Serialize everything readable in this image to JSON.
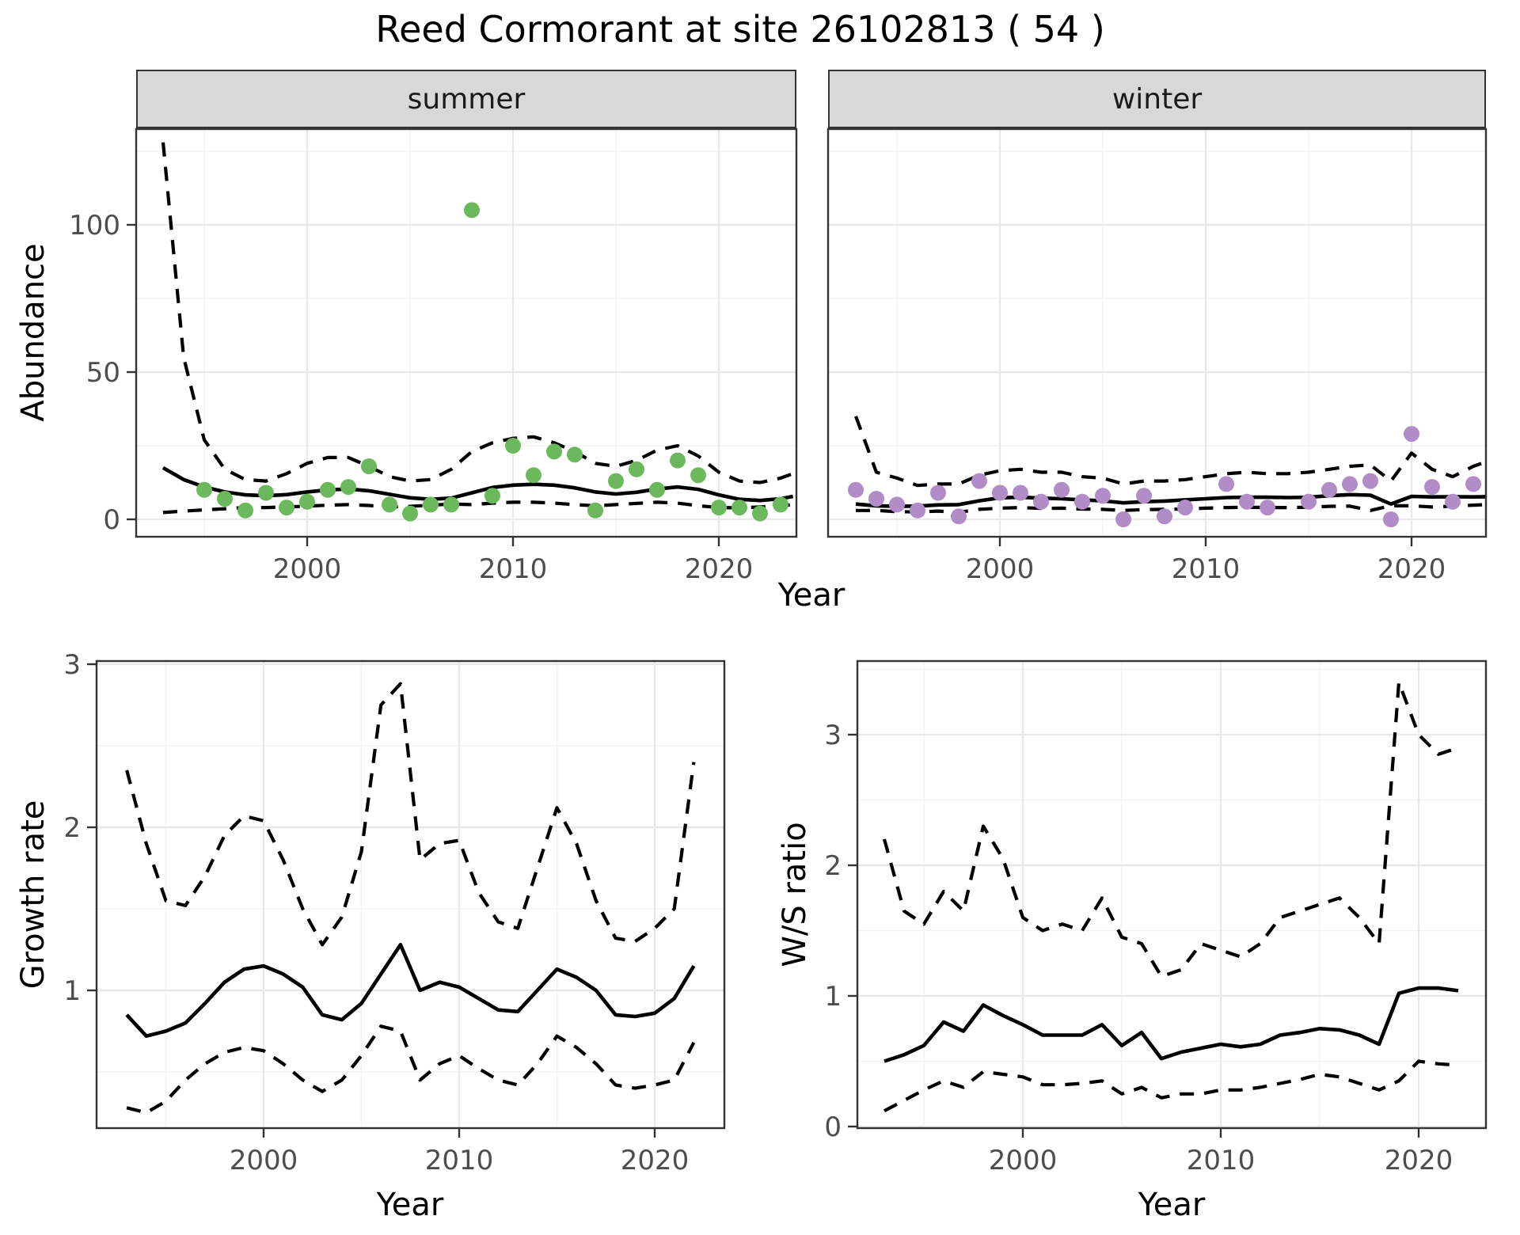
{
  "title": "Reed Cormorant at site 26102813 ( 54 )",
  "top_row": {
    "facets": [
      "summer",
      "winter"
    ],
    "ylabel": "Abundance",
    "xlabel": "Year"
  },
  "bottom_left": {
    "ylabel": "Growth rate",
    "xlabel": "Year"
  },
  "bottom_right": {
    "ylabel": "W/S ratio",
    "xlabel": "Year"
  },
  "colors": {
    "summer_point": "#6cb85c",
    "winter_point": "#b18cc6",
    "line": "#000000",
    "grid_major": "#e8e8e8",
    "grid_minor": "#f3f3f3",
    "strip_bg": "#d8d8d8",
    "panel_border": "#333333",
    "axis_text": "#4d4d4d"
  },
  "chart_data": [
    {
      "id": "abundance-summer",
      "type": "scatter",
      "facet_label": "summer",
      "xlabel": "Year",
      "ylabel": "Abundance",
      "xlim": [
        1991.7,
        2023.8
      ],
      "ylim": [
        -6,
        132
      ],
      "x_ticks": [
        2000,
        2010,
        2020
      ],
      "x_tick_labels": [
        "2000",
        "2010",
        "2020"
      ],
      "x_minor": [
        1995,
        2005,
        2015
      ],
      "y_ticks": [
        0,
        50,
        100
      ],
      "y_tick_labels": [
        "0",
        "50",
        "100"
      ],
      "y_minor": [
        25,
        75,
        125
      ],
      "point_color": "#6cb85c",
      "points": {
        "years": [
          1995,
          1996,
          1997,
          1998,
          1999,
          2000,
          2001,
          2002,
          2003,
          2004,
          2005,
          2006,
          2007,
          2008,
          2009,
          2010,
          2011,
          2012,
          2013,
          2014,
          2015,
          2016,
          2017,
          2018,
          2019,
          2020,
          2021,
          2022,
          2023
        ],
        "values": [
          10,
          7,
          3,
          9,
          4,
          6,
          10,
          11,
          18,
          5,
          2,
          5,
          5,
          105,
          8,
          25,
          15,
          23,
          22,
          3,
          13,
          17,
          10,
          20,
          15,
          4,
          4,
          2,
          5
        ]
      },
      "line_years": [
        1993,
        1994,
        1995,
        1996,
        1997,
        1998,
        1999,
        2000,
        2001,
        2002,
        2003,
        2004,
        2005,
        2006,
        2007,
        2008,
        2009,
        2010,
        2011,
        2012,
        2013,
        2014,
        2015,
        2016,
        2017,
        2018,
        2019,
        2020,
        2021,
        2022,
        2023,
        2023.6
      ],
      "series": [
        {
          "name": "model fit",
          "style": "solid",
          "values": [
            17.5,
            13.5,
            11.0,
            9.3,
            8.3,
            8.0,
            8.4,
            9.3,
            10.0,
            10.3,
            9.7,
            8.5,
            7.3,
            6.8,
            7.2,
            9.0,
            10.8,
            11.6,
            11.9,
            11.6,
            10.7,
            9.3,
            8.6,
            9.2,
            10.3,
            11.0,
            10.2,
            8.3,
            6.8,
            6.4,
            7.0,
            7.8
          ]
        },
        {
          "name": "upper CI",
          "style": "dashed",
          "values": [
            128,
            55,
            27,
            17,
            13.5,
            13,
            15.5,
            19,
            21,
            21,
            18,
            14.5,
            13,
            13.5,
            17,
            23,
            26,
            27.5,
            28,
            26,
            23,
            19,
            18,
            20,
            23.5,
            25,
            21.5,
            16,
            13,
            12.5,
            14,
            15.5
          ]
        },
        {
          "name": "lower CI",
          "style": "dashed",
          "values": [
            2.3,
            2.8,
            3.2,
            3.6,
            4.0,
            4.0,
            4.2,
            4.5,
            4.8,
            5.0,
            4.7,
            4.2,
            4.4,
            4.8,
            5.2,
            5.0,
            5.5,
            5.8,
            5.8,
            5.5,
            5.0,
            4.6,
            5.0,
            5.4,
            5.8,
            5.5,
            4.6,
            4.0,
            3.9,
            4.2,
            4.6,
            5.0
          ]
        }
      ]
    },
    {
      "id": "abundance-winter",
      "type": "scatter",
      "facet_label": "winter",
      "xlabel": "Year",
      "ylabel": "Abundance",
      "xlim": [
        1991.7,
        2023.8
      ],
      "ylim": [
        -6,
        132
      ],
      "x_ticks": [
        2000,
        2010,
        2020
      ],
      "x_tick_labels": [
        "2000",
        "2010",
        "2020"
      ],
      "x_minor": [
        1995,
        2005,
        2015
      ],
      "y_ticks": [
        0,
        50,
        100
      ],
      "y_tick_labels": [],
      "y_minor": [
        25,
        75,
        125
      ],
      "point_color": "#b18cc6",
      "points": {
        "years": [
          1993,
          1994,
          1995,
          1996,
          1997,
          1998,
          1999,
          2000,
          2001,
          2002,
          2003,
          2004,
          2005,
          2006,
          2007,
          2008,
          2009,
          2011,
          2012,
          2013,
          2015,
          2016,
          2017,
          2018,
          2019,
          2020,
          2021,
          2022,
          2023
        ],
        "values": [
          10,
          7,
          5,
          3,
          9,
          1,
          13,
          9,
          9,
          6,
          10,
          6,
          8,
          0,
          8,
          1,
          4,
          12,
          6,
          4,
          6,
          10,
          12,
          13,
          0,
          29,
          11,
          6,
          12
        ]
      },
      "line_years": [
        1993,
        1994,
        1995,
        1996,
        1997,
        1998,
        1999,
        2000,
        2001,
        2002,
        2003,
        2004,
        2005,
        2006,
        2007,
        2008,
        2009,
        2010,
        2011,
        2012,
        2013,
        2014,
        2015,
        2016,
        2017,
        2018,
        2019,
        2020,
        2021,
        2022,
        2023,
        2023.6
      ],
      "series": [
        {
          "name": "model fit",
          "style": "solid",
          "values": [
            5.2,
            4.6,
            4.4,
            4.5,
            4.9,
            5.0,
            6.3,
            7.3,
            7.5,
            7.2,
            7.0,
            6.6,
            6.3,
            5.6,
            6.0,
            6.2,
            6.6,
            7.0,
            7.4,
            7.5,
            7.5,
            7.4,
            7.5,
            8.0,
            8.4,
            8.2,
            5.2,
            7.8,
            7.6,
            7.7,
            7.6,
            7.7
          ]
        },
        {
          "name": "upper CI",
          "style": "dashed",
          "values": [
            35,
            16,
            14,
            11.5,
            12,
            12,
            15,
            16.5,
            17,
            16,
            16,
            14.5,
            14,
            12,
            13,
            13,
            13.5,
            14.5,
            15.5,
            16,
            15.5,
            15.5,
            16,
            17,
            18,
            18.5,
            13,
            22.5,
            17,
            14.5,
            18,
            19.5
          ]
        },
        {
          "name": "lower CI",
          "style": "dashed",
          "values": [
            3.0,
            3.0,
            2.6,
            2.5,
            2.8,
            2.4,
            3.4,
            3.8,
            4.0,
            3.7,
            3.8,
            3.5,
            3.4,
            3.0,
            3.3,
            3.4,
            3.5,
            3.8,
            4.0,
            4.1,
            4.0,
            4.0,
            4.1,
            4.4,
            4.5,
            3.0,
            4.6,
            4.6,
            4.2,
            4.5,
            4.8,
            5.0
          ]
        }
      ]
    },
    {
      "id": "growth-rate",
      "type": "line",
      "xlabel": "Year",
      "ylabel": "Growth rate",
      "xlim": [
        1991.5,
        2023.6
      ],
      "ylim": [
        0.15,
        3.02
      ],
      "x_ticks": [
        2000,
        2010,
        2020
      ],
      "x_tick_labels": [
        "2000",
        "2010",
        "2020"
      ],
      "x_minor": [
        1995,
        2005,
        2015
      ],
      "y_ticks": [
        1,
        2,
        3
      ],
      "y_tick_labels": [
        "1",
        "2",
        "3"
      ],
      "y_minor": [
        0.5,
        1.5,
        2.5
      ],
      "line_years": [
        1993,
        1994,
        1995,
        1996,
        1997,
        1998,
        1999,
        2000,
        2001,
        2002,
        2003,
        2004,
        2005,
        2006,
        2007,
        2008,
        2009,
        2010,
        2011,
        2012,
        2013,
        2014,
        2015,
        2016,
        2017,
        2018,
        2019,
        2020,
        2021,
        2022
      ],
      "series": [
        {
          "name": "growth rate",
          "style": "solid",
          "values": [
            0.85,
            0.72,
            0.75,
            0.8,
            0.92,
            1.05,
            1.13,
            1.15,
            1.1,
            1.02,
            0.85,
            0.82,
            0.92,
            1.1,
            1.28,
            1.0,
            1.05,
            1.02,
            0.95,
            0.88,
            0.87,
            1.0,
            1.13,
            1.08,
            1.0,
            0.85,
            0.84,
            0.86,
            0.95,
            1.15
          ]
        },
        {
          "name": "upper CI",
          "style": "dashed",
          "values": [
            2.35,
            1.9,
            1.55,
            1.52,
            1.7,
            1.95,
            2.07,
            2.04,
            1.8,
            1.5,
            1.28,
            1.45,
            1.85,
            2.75,
            2.88,
            1.8,
            1.9,
            1.92,
            1.6,
            1.42,
            1.38,
            1.75,
            2.12,
            1.9,
            1.55,
            1.32,
            1.3,
            1.38,
            1.5,
            2.4
          ]
        },
        {
          "name": "lower CI",
          "style": "dashed",
          "values": [
            0.28,
            0.25,
            0.32,
            0.45,
            0.55,
            0.62,
            0.65,
            0.63,
            0.55,
            0.45,
            0.38,
            0.45,
            0.6,
            0.78,
            0.75,
            0.45,
            0.55,
            0.6,
            0.52,
            0.45,
            0.42,
            0.55,
            0.72,
            0.65,
            0.55,
            0.42,
            0.4,
            0.42,
            0.45,
            0.68
          ]
        }
      ]
    },
    {
      "id": "ws-ratio",
      "type": "line",
      "xlabel": "Year",
      "ylabel": "W/S ratio",
      "xlim": [
        1991.6,
        2023.4
      ],
      "ylim": [
        -0.02,
        3.56
      ],
      "x_ticks": [
        2000,
        2010,
        2020
      ],
      "x_tick_labels": [
        "2000",
        "2010",
        "2020"
      ],
      "x_minor": [
        1995,
        2005,
        2015
      ],
      "y_ticks": [
        0,
        1,
        2,
        3
      ],
      "y_tick_labels": [
        "0",
        "1",
        "2",
        "3"
      ],
      "y_minor": [
        0.5,
        1.5,
        2.5,
        3.5
      ],
      "line_years": [
        1993,
        1994,
        1995,
        1996,
        1997,
        1998,
        1999,
        2000,
        2001,
        2002,
        2003,
        2004,
        2005,
        2006,
        2007,
        2008,
        2009,
        2010,
        2011,
        2012,
        2013,
        2014,
        2015,
        2016,
        2017,
        2018,
        2019,
        2020,
        2021,
        2022
      ],
      "series": [
        {
          "name": "W/S ratio",
          "style": "solid",
          "values": [
            0.5,
            0.55,
            0.62,
            0.8,
            0.73,
            0.93,
            0.85,
            0.78,
            0.7,
            0.7,
            0.7,
            0.78,
            0.62,
            0.72,
            0.52,
            0.57,
            0.6,
            0.63,
            0.61,
            0.63,
            0.7,
            0.72,
            0.75,
            0.74,
            0.7,
            0.63,
            1.02,
            1.06,
            1.06,
            1.04
          ]
        },
        {
          "name": "upper CI",
          "style": "dashed",
          "values": [
            2.2,
            1.65,
            1.55,
            1.8,
            1.65,
            2.3,
            2.05,
            1.6,
            1.5,
            1.55,
            1.5,
            1.75,
            1.45,
            1.4,
            1.15,
            1.2,
            1.4,
            1.35,
            1.3,
            1.4,
            1.6,
            1.65,
            1.7,
            1.75,
            1.6,
            1.4,
            3.4,
            3.0,
            2.85,
            2.9
          ]
        },
        {
          "name": "lower CI",
          "style": "dashed",
          "values": [
            0.12,
            0.2,
            0.28,
            0.35,
            0.3,
            0.42,
            0.4,
            0.38,
            0.32,
            0.32,
            0.33,
            0.35,
            0.25,
            0.3,
            0.22,
            0.25,
            0.25,
            0.28,
            0.28,
            0.3,
            0.33,
            0.36,
            0.4,
            0.38,
            0.33,
            0.28,
            0.35,
            0.5,
            0.48,
            0.47
          ]
        }
      ]
    }
  ]
}
